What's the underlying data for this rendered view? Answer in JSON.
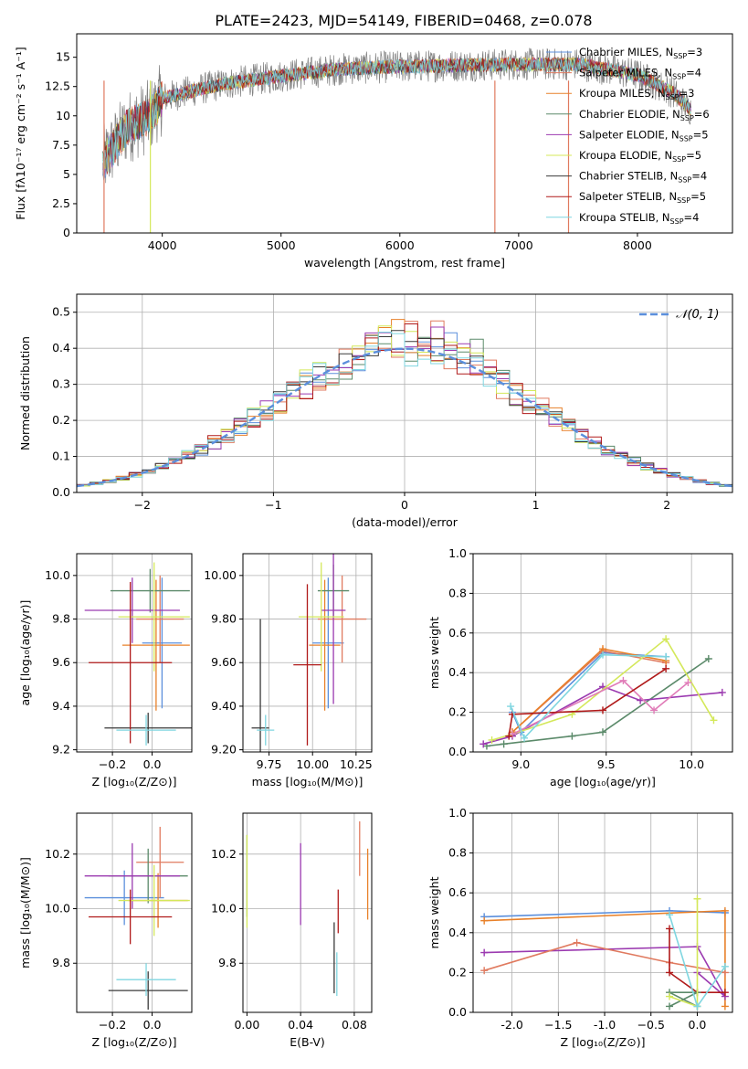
{
  "figure": {
    "title": "PLATE=2423, MJD=54149, FIBERID=0468, z=0.078"
  },
  "colors": {
    "Chabrier MILES": "#5b8fdc",
    "Salpeter MILES": "#e07a5f",
    "Kroupa MILES": "#e8812a",
    "Chabrier ELODIE": "#5b8a6a",
    "Salpeter ELODIE": "#9b3ab0",
    "Kroupa ELODIE": "#d4e85a",
    "Chabrier STELIB": "#3a3a3a",
    "Salpeter STELIB": "#b01a1a",
    "Kroupa STELIB": "#7fd6e0",
    "data": "#808080"
  },
  "chart_data": [
    {
      "id": "spectrum",
      "type": "line",
      "xlabel": "wavelength [Angstrom, rest frame]",
      "ylabel": "Flux [fλ10⁻¹⁷ erg cm⁻² s⁻¹ A⁻¹]",
      "xlim": [
        3280,
        8800
      ],
      "ylim": [
        0,
        17
      ],
      "xticks": [
        4000,
        5000,
        6000,
        7000,
        8000
      ],
      "yticks": [
        0.0,
        2.5,
        5.0,
        7.5,
        10.0,
        12.5,
        15.0
      ],
      "continuum_x": [
        3500,
        3700,
        3900,
        4000,
        4200,
        4500,
        5000,
        5500,
        6000,
        6500,
        7000,
        7500,
        8000,
        8300,
        8450
      ],
      "continuum_y": [
        6.0,
        9.0,
        10.0,
        11.5,
        12.0,
        12.7,
        13.4,
        14.0,
        14.2,
        14.3,
        14.4,
        14.4,
        13.5,
        12.0,
        10.5
      ],
      "legend": [
        {
          "label": "Chabrier MILES, N",
          "sub": "SSP",
          "tail": "=3"
        },
        {
          "label": "Salpeter MILES, N",
          "sub": "SSP",
          "tail": "=4"
        },
        {
          "label": "Kroupa MILES, N",
          "sub": "SSP",
          "tail": "=3"
        },
        {
          "label": "Chabrier ELODIE, N",
          "sub": "SSP",
          "tail": "=6"
        },
        {
          "label": "Salpeter ELODIE, N",
          "sub": "SSP",
          "tail": "=5"
        },
        {
          "label": "Kroupa ELODIE, N",
          "sub": "SSP",
          "tail": "=5"
        },
        {
          "label": "Chabrier STELIB, N",
          "sub": "SSP",
          "tail": "=4"
        },
        {
          "label": "Salpeter STELIB, N",
          "sub": "SSP",
          "tail": "=5"
        },
        {
          "label": "Kroupa STELIB, N",
          "sub": "SSP",
          "tail": "=4"
        }
      ]
    },
    {
      "id": "residuals",
      "type": "histogram",
      "xlabel": "(data-model)/error",
      "ylabel": "Normed distribution",
      "xlim": [
        -2.5,
        2.5
      ],
      "ylim": [
        0,
        0.55
      ],
      "xticks": [
        -2,
        -1,
        0,
        1,
        2
      ],
      "yticks": [
        0.0,
        0.1,
        0.2,
        0.3,
        0.4,
        0.5
      ],
      "bin_width": 0.1,
      "legend": "𝒩(0, 1)",
      "grid": true
    },
    {
      "id": "age_vs_Z",
      "type": "errorbar",
      "xlabel": "Z [log₁₀(Z/Z⊙)]",
      "ylabel": "age  [log₁₀(age/yr)]",
      "xlim": [
        -0.38,
        0.2
      ],
      "ylim": [
        9.19,
        10.1
      ],
      "xticks": [
        -0.2,
        0.0
      ],
      "yticks": [
        9.2,
        9.4,
        9.6,
        9.8,
        10.0
      ],
      "points": [
        {
          "model": "Chabrier MILES",
          "x": 0.05,
          "y": 9.69,
          "xerr": 0.1,
          "yerr": 0.3
        },
        {
          "model": "Salpeter MILES",
          "x": 0.04,
          "y": 9.8,
          "xerr": 0.12,
          "yerr": 0.2
        },
        {
          "model": "Kroupa MILES",
          "x": 0.02,
          "y": 9.68,
          "xerr": 0.17,
          "yerr": 0.3
        },
        {
          "model": "Chabrier ELODIE",
          "x": -0.01,
          "y": 9.93,
          "xerr": 0.2,
          "yerr": 0.1
        },
        {
          "model": "Salpeter ELODIE",
          "x": -0.1,
          "y": 9.84,
          "xerr": 0.24,
          "yerr": 0.15
        },
        {
          "model": "Kroupa ELODIE",
          "x": 0.01,
          "y": 9.81,
          "xerr": 0.18,
          "yerr": 0.25
        },
        {
          "model": "Chabrier STELIB",
          "x": -0.02,
          "y": 9.3,
          "xerr": 0.22,
          "yerr": 0.07
        },
        {
          "model": "Salpeter STELIB",
          "x": -0.11,
          "y": 9.6,
          "xerr": 0.21,
          "yerr": 0.37
        },
        {
          "model": "Kroupa STELIB",
          "x": -0.03,
          "y": 9.29,
          "xerr": 0.15,
          "yerr": 0.07
        }
      ]
    },
    {
      "id": "age_vs_mass",
      "type": "errorbar",
      "xlabel": "mass [log₁₀(M/M⊙)]",
      "ylabel": "",
      "xlim": [
        9.6,
        10.34
      ],
      "ylim": [
        9.19,
        10.1
      ],
      "xticks": [
        9.75,
        10.0,
        10.25
      ],
      "yticks": [
        9.2,
        9.4,
        9.6,
        9.8,
        10.0
      ],
      "points": [
        {
          "model": "Chabrier MILES",
          "x": 10.09,
          "y": 9.69,
          "xerr": 0.09,
          "yerr": 0.3
        },
        {
          "model": "Salpeter MILES",
          "x": 10.17,
          "y": 9.8,
          "xerr": 0.14,
          "yerr": 0.2
        },
        {
          "model": "Kroupa MILES",
          "x": 10.07,
          "y": 9.68,
          "xerr": 0.09,
          "yerr": 0.3
        },
        {
          "model": "Chabrier ELODIE",
          "x": 10.12,
          "y": 9.93,
          "xerr": 0.09,
          "yerr": 0.12
        },
        {
          "model": "Salpeter ELODIE",
          "x": 10.12,
          "y": 9.84,
          "xerr": 0.07,
          "yerr": 0.43
        },
        {
          "model": "Kroupa ELODIE",
          "x": 10.05,
          "y": 9.81,
          "xerr": 0.13,
          "yerr": 0.25
        },
        {
          "model": "Chabrier STELIB",
          "x": 9.7,
          "y": 9.3,
          "xerr": 0.05,
          "yerr": 0.5
        },
        {
          "model": "Salpeter STELIB",
          "x": 9.97,
          "y": 9.59,
          "xerr": 0.08,
          "yerr": 0.37
        },
        {
          "model": "Kroupa STELIB",
          "x": 9.73,
          "y": 9.29,
          "xerr": 0.05,
          "yerr": 0.07
        }
      ]
    },
    {
      "id": "weight_vs_age",
      "type": "line",
      "xlabel": "age  [log₁₀(age/yr)]",
      "ylabel": "mass weight",
      "xlim": [
        8.72,
        10.24
      ],
      "ylim": [
        0,
        1
      ],
      "xticks": [
        9.0,
        9.5,
        10.0
      ],
      "yticks": [
        0.0,
        0.2,
        0.4,
        0.6,
        0.8,
        1.0
      ],
      "series": [
        {
          "model": "Chabrier MILES",
          "x": [
            8.95,
            9.0,
            9.48,
            9.85
          ],
          "y": [
            0.2,
            0.1,
            0.5,
            0.48
          ]
        },
        {
          "model": "Salpeter MILES",
          "x": [
            8.95,
            9.48,
            9.85
          ],
          "y": [
            0.1,
            0.51,
            0.45
          ]
        },
        {
          "model": "Kroupa MILES",
          "x": [
            8.95,
            9.48,
            9.85
          ],
          "y": [
            0.1,
            0.52,
            0.46
          ]
        },
        {
          "model": "Chabrier ELODIE",
          "x": [
            8.8,
            8.9,
            9.3,
            9.48,
            10.1
          ],
          "y": [
            0.03,
            0.04,
            0.08,
            0.1,
            0.47
          ]
        },
        {
          "model": "Salpeter ELODIE",
          "x": [
            8.78,
            8.95,
            9.48,
            9.7,
            10.18
          ],
          "y": [
            0.04,
            0.08,
            0.33,
            0.26,
            0.3
          ]
        },
        {
          "model": "Kroupa ELODIE",
          "x": [
            8.83,
            8.95,
            9.3,
            9.85,
            10.13
          ],
          "y": [
            0.06,
            0.09,
            0.19,
            0.57,
            0.16
          ]
        },
        {
          "model": "Salpeter MILES pink",
          "x": [
            8.95,
            9.6,
            9.78,
            9.98
          ],
          "y": [
            0.09,
            0.36,
            0.21,
            0.35
          ]
        },
        {
          "model": "Salpeter STELIB",
          "x": [
            8.93,
            8.95,
            9.48,
            9.85
          ],
          "y": [
            0.08,
            0.19,
            0.21,
            0.42
          ]
        },
        {
          "model": "Kroupa STELIB",
          "x": [
            8.94,
            9.02,
            9.48,
            9.85
          ],
          "y": [
            0.23,
            0.07,
            0.49,
            0.48
          ]
        }
      ]
    },
    {
      "id": "mass_vs_Z",
      "type": "errorbar",
      "xlabel": "Z [log₁₀(Z/Z⊙)]",
      "ylabel": "mass [log₁₀(M/M⊙)]",
      "xlim": [
        -0.38,
        0.2
      ],
      "ylim": [
        9.62,
        10.35
      ],
      "xticks": [
        -0.2,
        0.0
      ],
      "yticks": [
        9.8,
        10.0,
        10.2
      ],
      "points": [
        {
          "model": "Chabrier MILES",
          "x": -0.14,
          "y": 10.04,
          "xerr": 0.2,
          "yerr": 0.1
        },
        {
          "model": "Salpeter MILES",
          "x": 0.04,
          "y": 10.17,
          "xerr": 0.12,
          "yerr": 0.13
        },
        {
          "model": "Kroupa MILES",
          "x": 0.03,
          "y": 10.03,
          "xerr": 0.15,
          "yerr": 0.1
        },
        {
          "model": "Chabrier ELODIE",
          "x": -0.02,
          "y": 10.12,
          "xerr": 0.2,
          "yerr": 0.1
        },
        {
          "model": "Salpeter ELODIE",
          "x": -0.1,
          "y": 10.12,
          "xerr": 0.24,
          "yerr": 0.12
        },
        {
          "model": "Kroupa ELODIE",
          "x": 0.01,
          "y": 10.03,
          "xerr": 0.18,
          "yerr": 0.13
        },
        {
          "model": "Chabrier STELIB",
          "x": -0.02,
          "y": 9.7,
          "xerr": 0.2,
          "yerr": 0.07
        },
        {
          "model": "Salpeter STELIB",
          "x": -0.11,
          "y": 9.97,
          "xerr": 0.21,
          "yerr": 0.1
        },
        {
          "model": "Kroupa STELIB",
          "x": -0.03,
          "y": 9.74,
          "xerr": 0.15,
          "yerr": 0.06
        }
      ]
    },
    {
      "id": "mass_vs_ebv",
      "type": "errorbar",
      "xlabel": "E(B-V)",
      "ylabel": "",
      "xlim": [
        -0.003,
        0.093
      ],
      "ylim": [
        9.62,
        10.35
      ],
      "xticks": [
        0.0,
        0.04,
        0.08
      ],
      "yticks": [
        9.8,
        10.0,
        10.2
      ],
      "points": [
        {
          "model": "Chabrier ELODIE",
          "x": 0.0,
          "y": 10.12,
          "xerr": 0,
          "yerr": 0.15
        },
        {
          "model": "Kroupa ELODIE",
          "x": 0.0,
          "y": 10.1,
          "xerr": 0,
          "yerr": 0.17
        },
        {
          "model": "Salpeter ELODIE",
          "x": 0.04,
          "y": 10.09,
          "xerr": 0,
          "yerr": 0.15
        },
        {
          "model": "Chabrier STELIB",
          "x": 0.065,
          "y": 9.82,
          "xerr": 0,
          "yerr": 0.13
        },
        {
          "model": "Salpeter STELIB",
          "x": 0.068,
          "y": 9.99,
          "xerr": 0,
          "yerr": 0.08
        },
        {
          "model": "Kroupa STELIB",
          "x": 0.067,
          "y": 9.76,
          "xerr": 0,
          "yerr": 0.08
        },
        {
          "model": "Salpeter MILES",
          "x": 0.084,
          "y": 10.22,
          "xerr": 0,
          "yerr": 0.1
        },
        {
          "model": "Kroupa MILES",
          "x": 0.09,
          "y": 10.09,
          "xerr": 0,
          "yerr": 0.13
        }
      ]
    },
    {
      "id": "weight_vs_Z",
      "type": "line",
      "xlabel": "Z [log₁₀(Z/Z⊙)]",
      "ylabel": "mass weight",
      "xlim": [
        -2.42,
        0.38
      ],
      "ylim": [
        0,
        1
      ],
      "xticks": [
        -2.0,
        -1.5,
        -1.0,
        -0.5,
        0.0
      ],
      "yticks": [
        0.0,
        0.2,
        0.4,
        0.6,
        0.8,
        1.0
      ],
      "series": [
        {
          "model": "Chabrier MILES",
          "x": [
            -2.3,
            -0.3,
            0.3
          ],
          "y": [
            0.48,
            0.51,
            0.5
          ]
        },
        {
          "model": "Kroupa MILES",
          "x": [
            -2.3,
            0.3,
            0.3
          ],
          "y": [
            0.46,
            0.51,
            0.03
          ]
        },
        {
          "model": "Salpeter ELODIE",
          "x": [
            -2.3,
            0.0,
            0.3,
            0.0
          ],
          "y": [
            0.3,
            0.33,
            0.08,
            0.2
          ]
        },
        {
          "model": "Salpeter MILES",
          "x": [
            -2.3,
            -1.3,
            -0.3,
            0.3
          ],
          "y": [
            0.21,
            0.35,
            0.25,
            0.2
          ]
        },
        {
          "model": "Salpeter STELIB",
          "x": [
            -0.3,
            -0.3,
            0.0,
            0.3
          ],
          "y": [
            0.42,
            0.2,
            0.1,
            0.1
          ]
        },
        {
          "model": "Chabrier ELODIE",
          "x": [
            -0.3,
            0.0,
            -0.3,
            0.0
          ],
          "y": [
            0.03,
            0.1,
            0.1,
            0.03
          ]
        },
        {
          "model": "Kroupa ELODIE",
          "x": [
            0.0,
            0.0,
            -0.3
          ],
          "y": [
            0.57,
            0.03,
            0.08
          ]
        },
        {
          "model": "Kroupa STELIB",
          "x": [
            -0.3,
            0.0,
            0.3
          ],
          "y": [
            0.49,
            0.03,
            0.23
          ]
        }
      ]
    }
  ]
}
